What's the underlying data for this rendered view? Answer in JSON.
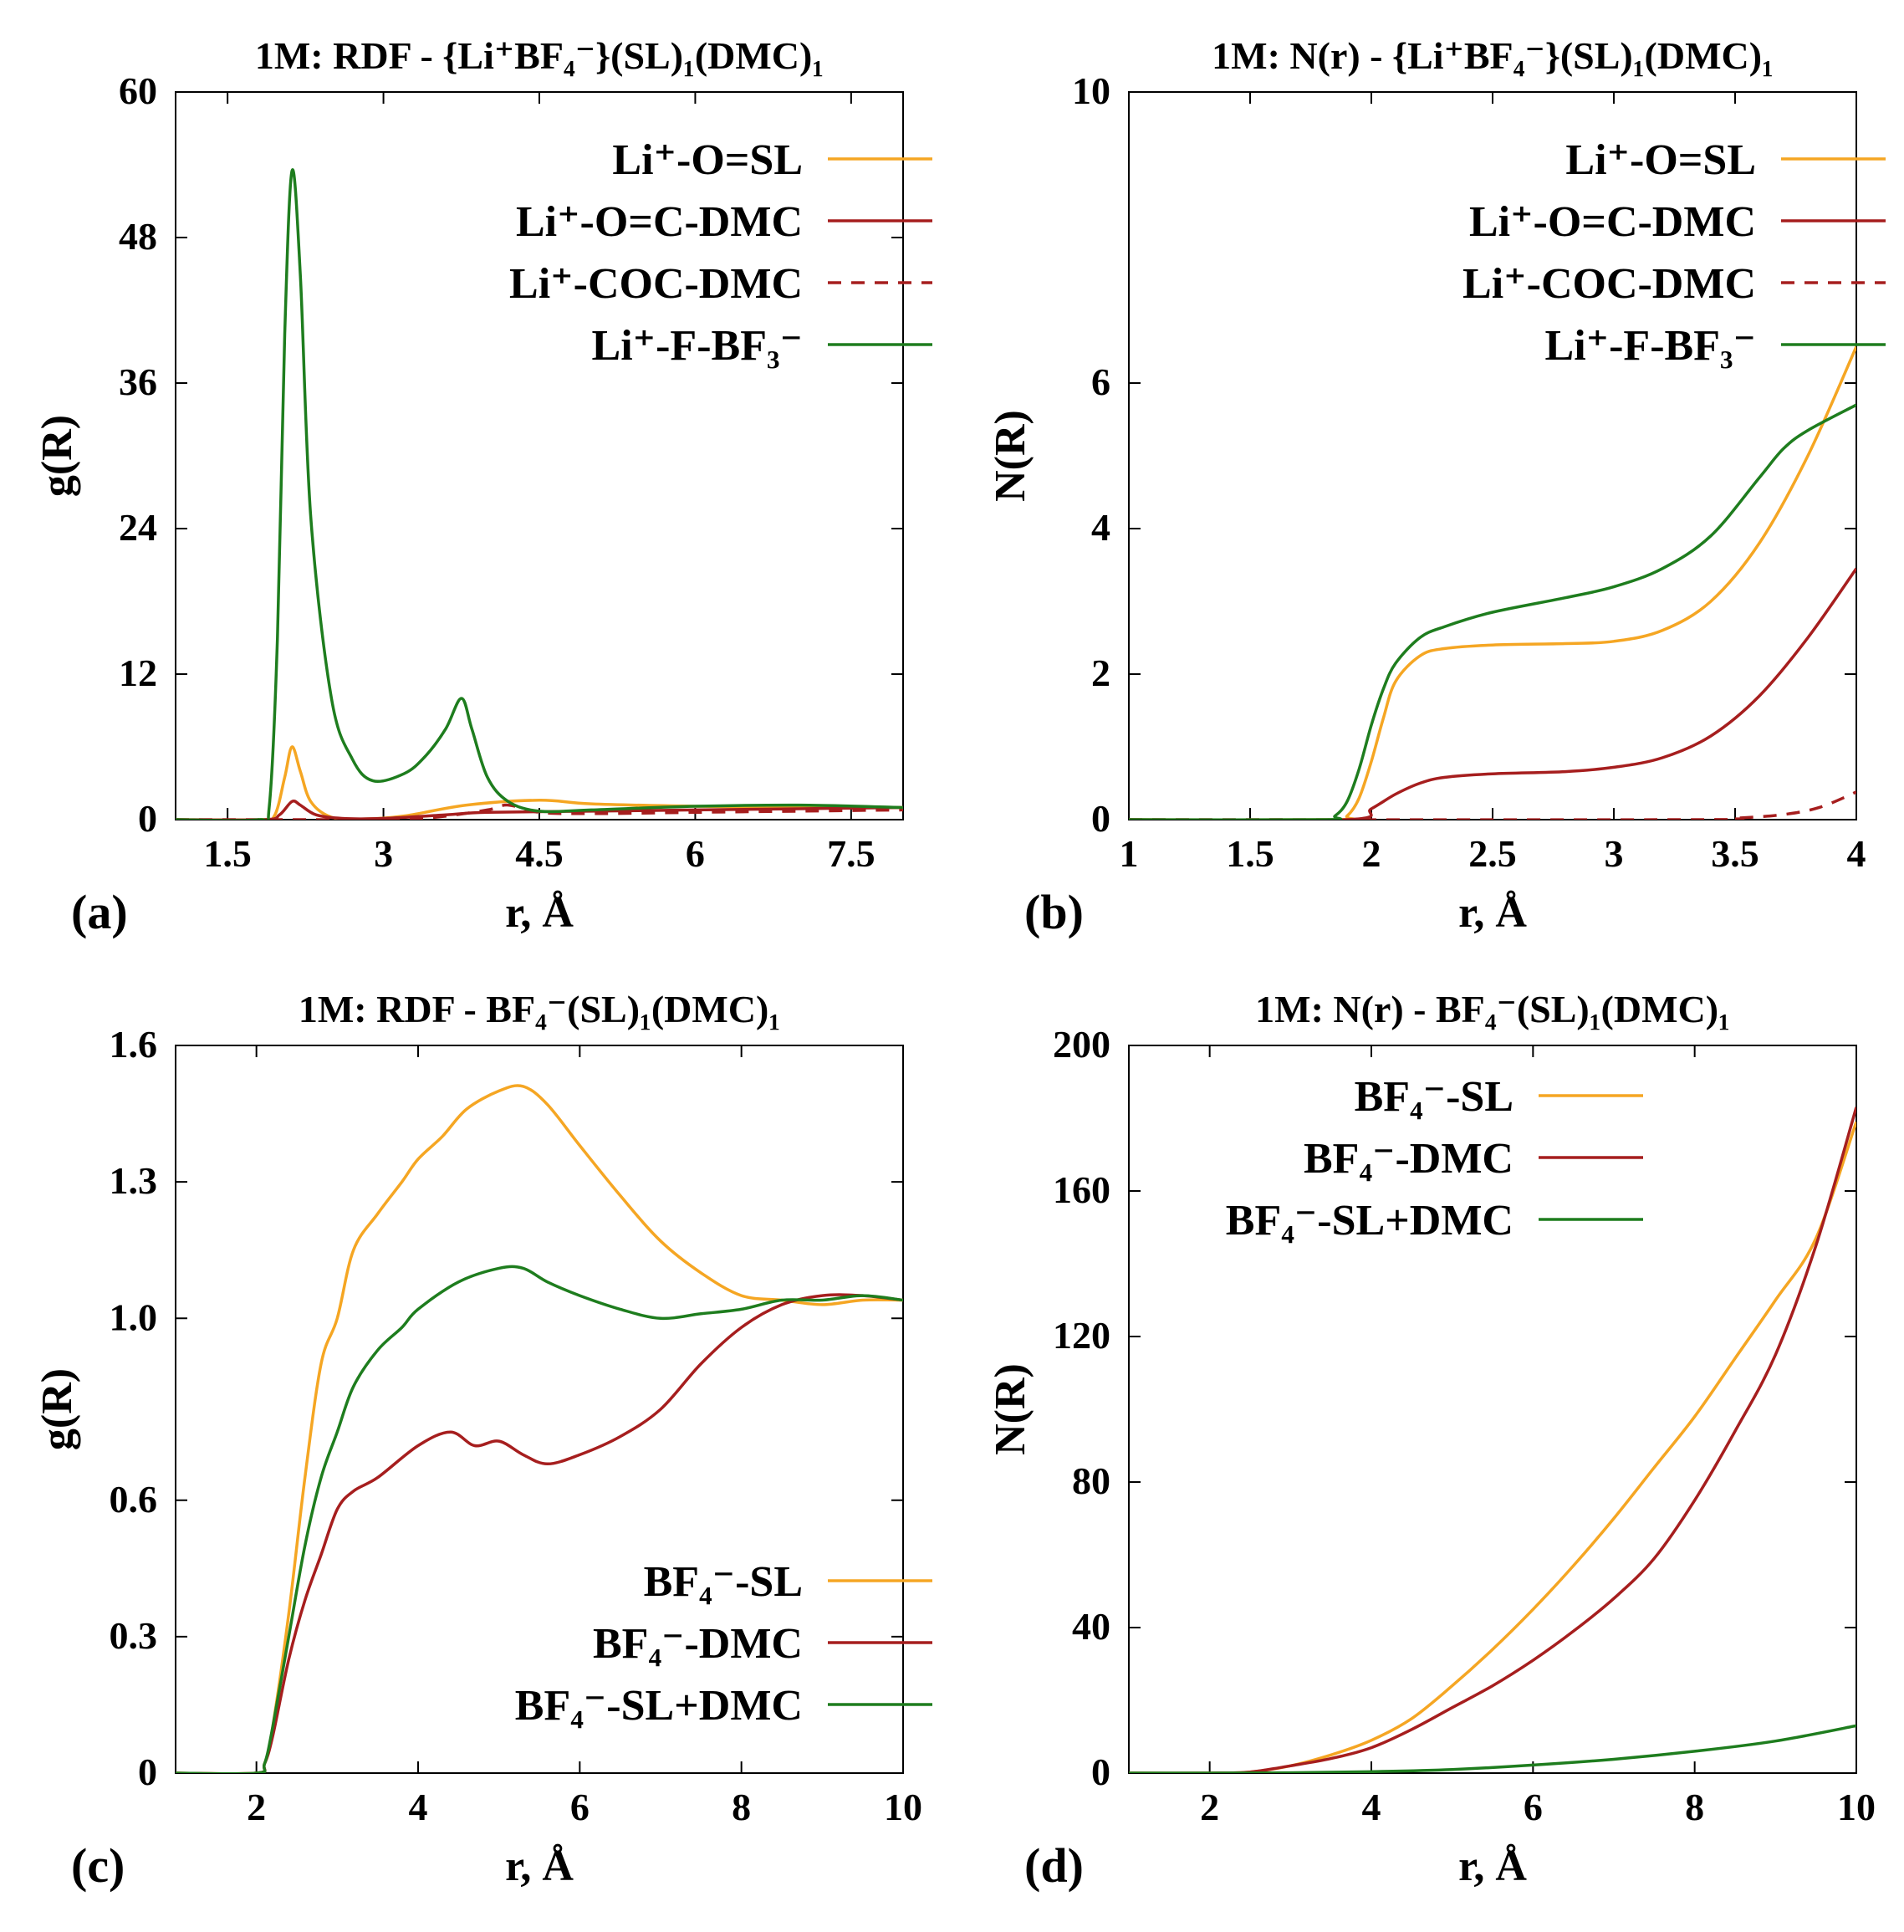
{
  "chart_data": [
    {
      "type": "line",
      "panel_label": "(a)",
      "title": "1M: RDF - {Li⁺BF₄⁻}(SL)₁(DMC)₁",
      "xlabel": "r, Å",
      "ylabel": "g(R)",
      "xlim": [
        1.0,
        8.0
      ],
      "ylim": [
        0,
        60
      ],
      "xticks": [
        1.5,
        3,
        4.5,
        6,
        7.5
      ],
      "xtick_labels": [
        "1.5",
        "3",
        "4.5",
        "6",
        "7.5"
      ],
      "yticks": [
        0,
        12,
        24,
        36,
        48,
        60
      ],
      "ytick_labels": [
        "0",
        "12",
        "24",
        "36",
        "48",
        "60"
      ],
      "legend": "top-right",
      "series": [
        {
          "name": "Li⁺-O=SL",
          "color": "#f5a623",
          "dash": false,
          "x": [
            1.0,
            1.8,
            1.95,
            2.05,
            2.12,
            2.2,
            2.3,
            2.5,
            2.8,
            3.2,
            3.8,
            4.5,
            5.0,
            6.0,
            7.0,
            8.0
          ],
          "y": [
            0,
            0,
            0.3,
            3.5,
            6.0,
            4.0,
            1.5,
            0.2,
            0.05,
            0.3,
            1.2,
            1.6,
            1.3,
            1.1,
            1.0,
            1.0
          ]
        },
        {
          "name": "Li⁺-O=C-DMC",
          "color": "#a61e1e",
          "dash": false,
          "x": [
            1.0,
            1.85,
            2.0,
            2.12,
            2.2,
            2.35,
            2.6,
            3.0,
            3.6,
            4.0,
            5.0,
            6.0,
            7.0,
            8.0
          ],
          "y": [
            0,
            0,
            0.4,
            1.5,
            1.2,
            0.4,
            0.1,
            0.1,
            0.4,
            0.6,
            0.7,
            0.8,
            0.9,
            1.0
          ]
        },
        {
          "name": "Li⁺-COC-DMC",
          "color": "#a61e1e",
          "dash": true,
          "x": [
            1.0,
            2.5,
            3.0,
            3.5,
            4.0,
            4.2,
            4.5,
            5.0,
            6.0,
            7.0,
            8.0
          ],
          "y": [
            0,
            0,
            0.05,
            0.2,
            0.8,
            1.2,
            0.6,
            0.5,
            0.6,
            0.7,
            0.8
          ]
        },
        {
          "name": "Li⁺-F-BF₃⁻",
          "color": "#1e7d1e",
          "dash": false,
          "x": [
            1.0,
            1.8,
            1.9,
            1.98,
            2.05,
            2.12,
            2.2,
            2.3,
            2.5,
            2.7,
            2.9,
            3.2,
            3.4,
            3.6,
            3.75,
            3.85,
            4.0,
            4.2,
            4.5,
            5.0,
            6.0,
            7.0,
            8.0
          ],
          "y": [
            0,
            0,
            1,
            15,
            40,
            53.5,
            45,
            25,
            10,
            5,
            3.2,
            3.8,
            5.2,
            7.5,
            10,
            7.5,
            3.5,
            1.5,
            0.7,
            0.8,
            1.1,
            1.2,
            1.0
          ]
        }
      ]
    },
    {
      "type": "line",
      "panel_label": "(b)",
      "title": "1M: N(r) - {Li⁺BF₄⁻}(SL)₁(DMC)₁",
      "xlabel": "r, Å",
      "ylabel": "N(R)",
      "xlim": [
        1.0,
        4.0
      ],
      "ylim": [
        0,
        10
      ],
      "xticks": [
        1,
        1.5,
        2,
        2.5,
        3,
        3.5,
        4
      ],
      "xtick_labels": [
        "1",
        "1.5",
        "2",
        "2.5",
        "3",
        "3.5",
        "4"
      ],
      "yticks": [
        0,
        2,
        4,
        6,
        10
      ],
      "ytick_labels": [
        "0",
        "2",
        "4",
        "6",
        "10"
      ],
      "legend": "top-right",
      "series": [
        {
          "name": "Li⁺-O=SL",
          "color": "#f5a623",
          "dash": false,
          "x": [
            1.0,
            1.85,
            1.9,
            1.95,
            2.0,
            2.05,
            2.1,
            2.2,
            2.3,
            2.5,
            2.8,
            3.0,
            3.2,
            3.4,
            3.6,
            3.8,
            4.0
          ],
          "y": [
            0,
            0,
            0.05,
            0.3,
            0.8,
            1.4,
            1.9,
            2.25,
            2.35,
            2.4,
            2.42,
            2.45,
            2.6,
            3.0,
            3.8,
            5.0,
            6.5
          ]
        },
        {
          "name": "Li⁺-O=C-DMC",
          "color": "#a61e1e",
          "dash": false,
          "x": [
            1.0,
            1.9,
            2.0,
            2.1,
            2.2,
            2.3,
            2.5,
            2.8,
            3.0,
            3.2,
            3.4,
            3.6,
            3.8,
            4.0
          ],
          "y": [
            0,
            0,
            0.15,
            0.35,
            0.5,
            0.58,
            0.63,
            0.66,
            0.72,
            0.85,
            1.15,
            1.7,
            2.5,
            3.45
          ]
        },
        {
          "name": "Li⁺-COC-DMC",
          "color": "#a61e1e",
          "dash": true,
          "x": [
            1.0,
            3.3,
            3.5,
            3.7,
            3.85,
            4.0
          ],
          "y": [
            0,
            0,
            0.02,
            0.07,
            0.17,
            0.38
          ]
        },
        {
          "name": "Li⁺-F-BF₃⁻",
          "color": "#1e7d1e",
          "dash": false,
          "x": [
            1.0,
            1.8,
            1.85,
            1.9,
            1.95,
            2.0,
            2.05,
            2.1,
            2.2,
            2.3,
            2.5,
            2.8,
            3.0,
            3.2,
            3.4,
            3.6,
            3.7,
            3.8,
            4.0
          ],
          "y": [
            0,
            0,
            0.05,
            0.25,
            0.7,
            1.3,
            1.8,
            2.15,
            2.5,
            2.65,
            2.85,
            3.05,
            3.2,
            3.45,
            3.9,
            4.7,
            5.1,
            5.35,
            5.7
          ]
        }
      ]
    },
    {
      "type": "line",
      "panel_label": "(c)",
      "title": "1M: RDF - BF₄⁻(SL)₁(DMC)₁",
      "xlabel": "r, Å",
      "ylabel": "g(R)",
      "xlim": [
        1.0,
        10.0
      ],
      "ylim": [
        0,
        1.6
      ],
      "xticks": [
        2,
        4,
        6,
        8,
        10
      ],
      "xtick_labels": [
        "2",
        "4",
        "6",
        "8",
        "10"
      ],
      "yticks": [
        0,
        0.3,
        0.6,
        1.0,
        1.3,
        1.6
      ],
      "ytick_labels": [
        "0",
        "0.3",
        "0.6",
        "1.0",
        "1.3",
        "1.6"
      ],
      "legend": "bottom-right",
      "series": [
        {
          "name": "BF₄⁻-SL",
          "color": "#f5a623",
          "dash": false,
          "x": [
            1.0,
            2.0,
            2.1,
            2.2,
            2.4,
            2.6,
            2.8,
            3.0,
            3.2,
            3.5,
            3.8,
            4.0,
            4.3,
            4.6,
            5.0,
            5.3,
            5.6,
            6.0,
            6.5,
            7.0,
            7.5,
            8.0,
            8.5,
            9.0,
            9.5,
            10.0
          ],
          "y": [
            0,
            0,
            0.02,
            0.1,
            0.35,
            0.65,
            0.9,
            1.0,
            1.15,
            1.23,
            1.3,
            1.35,
            1.4,
            1.46,
            1.5,
            1.51,
            1.47,
            1.38,
            1.27,
            1.17,
            1.1,
            1.05,
            1.04,
            1.03,
            1.04,
            1.04
          ]
        },
        {
          "name": "BF₄⁻-DMC",
          "color": "#a61e1e",
          "dash": false,
          "x": [
            1.0,
            2.0,
            2.1,
            2.2,
            2.4,
            2.6,
            2.8,
            3.0,
            3.2,
            3.5,
            4.0,
            4.4,
            4.7,
            5.0,
            5.3,
            5.6,
            6.0,
            6.5,
            7.0,
            7.5,
            8.0,
            8.5,
            9.0,
            9.5,
            10.0
          ],
          "y": [
            0,
            0,
            0.02,
            0.08,
            0.25,
            0.38,
            0.48,
            0.58,
            0.62,
            0.65,
            0.72,
            0.75,
            0.72,
            0.73,
            0.7,
            0.68,
            0.7,
            0.74,
            0.8,
            0.9,
            0.98,
            1.03,
            1.05,
            1.05,
            1.04
          ]
        },
        {
          "name": "BF₄⁻-SL+DMC",
          "color": "#1e7d1e",
          "dash": false,
          "x": [
            1.0,
            2.0,
            2.1,
            2.2,
            2.4,
            2.6,
            2.8,
            3.0,
            3.2,
            3.5,
            3.8,
            4.0,
            4.5,
            5.0,
            5.3,
            5.6,
            6.0,
            6.5,
            7.0,
            7.5,
            8.0,
            8.5,
            9.0,
            9.5,
            10.0
          ],
          "y": [
            0,
            0,
            0.02,
            0.1,
            0.3,
            0.5,
            0.65,
            0.75,
            0.85,
            0.93,
            0.98,
            1.02,
            1.08,
            1.11,
            1.11,
            1.08,
            1.05,
            1.02,
            1.0,
            1.01,
            1.02,
            1.04,
            1.04,
            1.05,
            1.04
          ]
        }
      ]
    },
    {
      "type": "line",
      "panel_label": "(d)",
      "title": "1M: N(r) - BF₄⁻(SL)₁(DMC)₁",
      "xlabel": "r, Å",
      "ylabel": "N(R)",
      "xlim": [
        1.0,
        10.0
      ],
      "ylim": [
        0,
        200
      ],
      "xticks": [
        2,
        4,
        6,
        8,
        10
      ],
      "xtick_labels": [
        "2",
        "4",
        "6",
        "8",
        "10"
      ],
      "yticks": [
        0,
        40,
        80,
        120,
        160,
        200
      ],
      "ytick_labels": [
        "0",
        "40",
        "80",
        "120",
        "160",
        "200"
      ],
      "legend": "top-left",
      "series": [
        {
          "name": "BF₄⁻-SL",
          "color": "#f5a623",
          "dash": false,
          "x": [
            1.0,
            2.0,
            2.5,
            3.0,
            3.5,
            4.0,
            4.5,
            5.0,
            5.5,
            6.0,
            6.5,
            7.0,
            7.5,
            8.0,
            8.5,
            9.0,
            9.5,
            10.0
          ],
          "y": [
            0,
            0,
            0.3,
            2,
            5,
            9,
            15,
            24,
            34,
            45,
            57,
            70,
            84,
            98,
            114,
            130,
            147,
            179
          ]
        },
        {
          "name": "BF₄⁻-DMC",
          "color": "#a61e1e",
          "dash": false,
          "x": [
            1.0,
            2.0,
            2.5,
            3.0,
            3.5,
            4.0,
            4.5,
            5.0,
            5.5,
            6.0,
            6.5,
            7.0,
            7.5,
            8.0,
            8.5,
            9.0,
            9.5,
            10.0
          ],
          "y": [
            0,
            0,
            0.3,
            2,
            4,
            7,
            12,
            18,
            24,
            31,
            39,
            48,
            59,
            75,
            94,
            115,
            145,
            183
          ]
        },
        {
          "name": "BF₄⁻-SL+DMC",
          "color": "#1e7d1e",
          "dash": false,
          "x": [
            1.0,
            2.0,
            3.0,
            4.0,
            5.0,
            6.0,
            7.0,
            8.0,
            9.0,
            10.0
          ],
          "y": [
            0,
            0,
            0.1,
            0.4,
            1.0,
            2.2,
            3.8,
            6.0,
            8.8,
            13
          ]
        }
      ]
    }
  ]
}
